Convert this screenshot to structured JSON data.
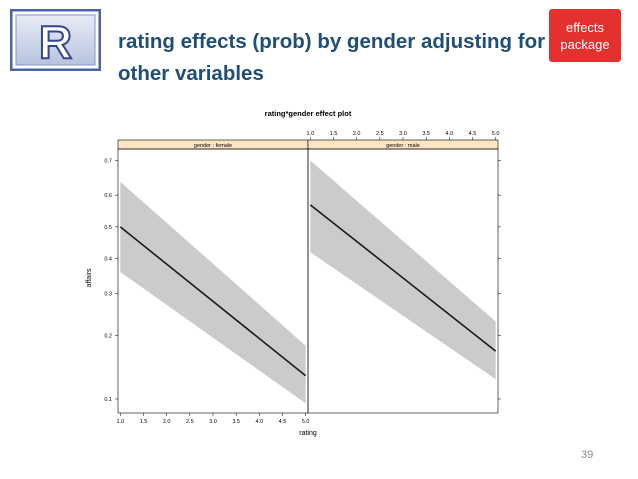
{
  "slide": {
    "title": "rating effects (prob) by gender adjusting for other variables",
    "badge_line1": "effects",
    "badge_line2": "package",
    "page_number": "39",
    "logo_letter": "R"
  },
  "colors": {
    "title": "#1F4E79",
    "badge": "#E3312F",
    "strip": "#FFE4C4",
    "band": "#CBCBCB",
    "line": "#1a1a1a"
  },
  "chart_data": {
    "type": "line",
    "title": "rating*gender effect plot",
    "xlabel": "rating",
    "ylabel": "affairs",
    "x_ticks": [
      1.0,
      1.5,
      2.0,
      2.5,
      3.0,
      3.5,
      4.0,
      4.5,
      5.0
    ],
    "x_tick_labels": [
      "1.0",
      "1.5",
      "2.0",
      "2.5",
      "3.0",
      "3.5",
      "4.0",
      "4.5",
      "5.0"
    ],
    "y_ticks": [
      0.1,
      0.2,
      0.3,
      0.4,
      0.5,
      0.6,
      0.7
    ],
    "y_tick_labels": [
      "0.1",
      "0.2",
      "0.3",
      "0.4",
      "0.5",
      "0.6",
      "0.7"
    ],
    "xlim": [
      0.95,
      5.05
    ],
    "ylim": [
      0.085,
      0.73
    ],
    "y_scale": "logit",
    "legend": "none",
    "panels": [
      {
        "strip": "gender : female",
        "x": [
          1.0,
          5.0
        ],
        "fit": [
          0.5,
          0.13
        ],
        "lower": [
          0.36,
          0.095
        ],
        "upper": [
          0.64,
          0.18
        ]
      },
      {
        "strip": "gender : male",
        "x": [
          1.0,
          5.0
        ],
        "fit": [
          0.57,
          0.17
        ],
        "lower": [
          0.42,
          0.125
        ],
        "upper": [
          0.7,
          0.23
        ]
      }
    ]
  }
}
